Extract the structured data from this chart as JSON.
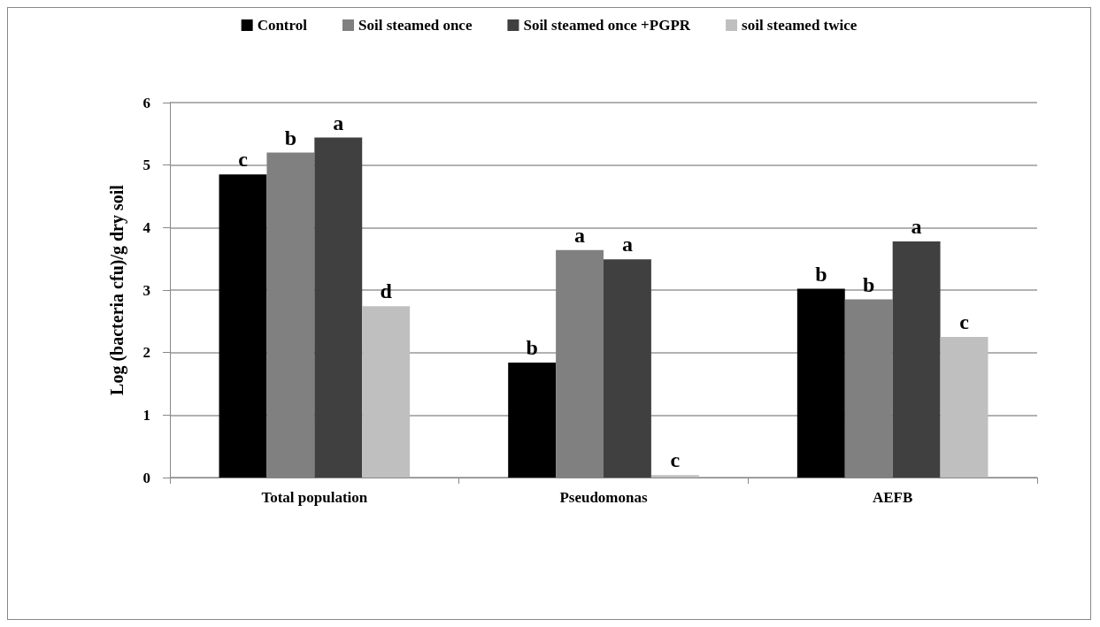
{
  "chart_data": {
    "type": "bar",
    "ylabel": "Log (bacteria cfu)/g dry soil",
    "categories": [
      "Total population",
      "Pseudomonas",
      "AEFB"
    ],
    "series": [
      {
        "name": "Control",
        "color": "#000000",
        "values": [
          4.85,
          1.84,
          3.02
        ],
        "value_labels": [
          "c",
          "b",
          "b"
        ]
      },
      {
        "name": "Soil steamed once",
        "color": "#808080",
        "values": [
          5.2,
          3.64,
          2.85
        ],
        "value_labels": [
          "b",
          "a",
          "b"
        ]
      },
      {
        "name": "Soil steamed once +PGPR",
        "color": "#404040",
        "values": [
          5.44,
          3.49,
          3.78
        ],
        "value_labels": [
          "a",
          "a",
          "a"
        ]
      },
      {
        "name": "soil steamed twice",
        "color": "#bfbfbf",
        "values": [
          2.74,
          0.04,
          2.25
        ],
        "value_labels": [
          "d",
          "c",
          "c"
        ]
      }
    ],
    "ylim": [
      0,
      6
    ],
    "yticks": [
      0,
      1,
      2,
      3,
      4,
      5,
      6
    ],
    "grid": "y",
    "legend": "top"
  }
}
